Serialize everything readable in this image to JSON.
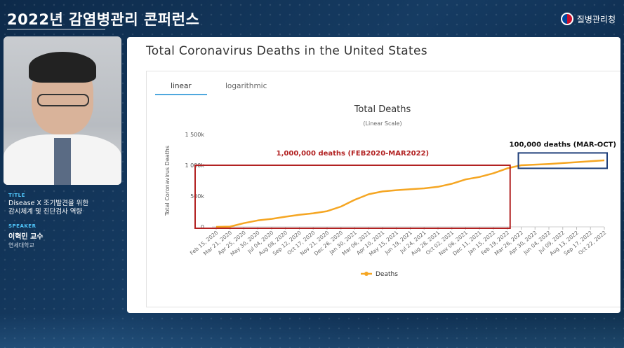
{
  "header": {
    "conference_title": "2022년 감염병관리 콘퍼런스",
    "agency": "질병관리청"
  },
  "sidebar": {
    "title_label": "TITLE",
    "talk_title_line1": "Disease X 조기발견을 위한",
    "talk_title_line2": "감시체계 및 진단검사 역량",
    "speaker_label": "SPEAKER",
    "speaker_name": "이혁민 교수",
    "affiliation": "연세대학교"
  },
  "slide": {
    "title": "Total Coronavirus Deaths in the United States",
    "tabs": [
      "linear",
      "logarithmic"
    ],
    "active_tab": "linear"
  },
  "chart_data": {
    "type": "line",
    "title": "Total Deaths",
    "subtitle": "(Linear Scale)",
    "ylabel": "Total Coronavirus Deaths",
    "xlabel": "",
    "ylim": [
      0,
      1500000
    ],
    "y_ticks": [
      0,
      500000,
      1000000,
      1500000
    ],
    "y_tick_labels": [
      "0",
      "500k",
      "1 000k",
      "1 500k"
    ],
    "x_tick_labels": [
      "Feb 15, 2020",
      "Mar 21, 2020",
      "Apr 25, 2020",
      "May 30, 2020",
      "Jul 04, 2020",
      "Aug 08, 2020",
      "Sep 12, 2020",
      "Oct 17, 2020",
      "Nov 21, 2020",
      "Dec 26, 2020",
      "Jan 30, 2021",
      "Mar 06, 2021",
      "Apr 10, 2021",
      "May 15, 2021",
      "Jun 19, 2021",
      "Jul 24, 2021",
      "Aug 28, 2021",
      "Oct 02, 2021",
      "Nov 06, 2021",
      "Dec 11, 2021",
      "Jan 15, 2022",
      "Feb 19, 2022",
      "Mar 26, 2022",
      "Apr 30, 2022",
      "Jun 04, 2022",
      "Jul 09, 2022",
      "Aug 13, 2022",
      "Sep 17, 2022",
      "Oct 22, 2022"
    ],
    "series": [
      {
        "name": "Deaths",
        "color": "#f5a623",
        "values": [
          0,
          5000,
          60000,
          105000,
          130000,
          165000,
          195000,
          220000,
          255000,
          330000,
          440000,
          530000,
          575000,
          595000,
          610000,
          625000,
          650000,
          700000,
          770000,
          810000,
          870000,
          950000,
          1000000,
          1010000,
          1020000,
          1035000,
          1050000,
          1065000,
          1080000
        ]
      }
    ],
    "legend": {
      "position": "bottom-center"
    },
    "grid": false,
    "annotations": [
      {
        "text": "1,000,000 deaths (FEB2020-MAR2022)",
        "color": "#b22222",
        "x_start": 0,
        "x_end": 21,
        "y_top": 1000000,
        "y_bottom": 0
      },
      {
        "text": "100,000 deaths (MAR-OCT)",
        "color": "#1f3f7a",
        "x_start": 22,
        "x_end": 28,
        "y_top": 1200000,
        "y_bottom": 950000
      }
    ]
  }
}
